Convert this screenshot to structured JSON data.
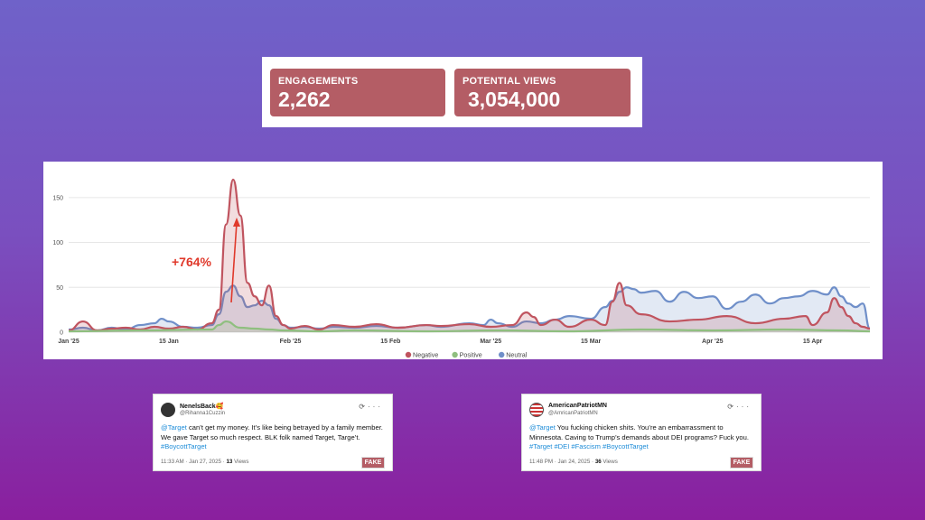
{
  "stats": {
    "engagements": {
      "label": "ENGAGEMENTS",
      "value": "2,262"
    },
    "potential_views": {
      "label": "POTENTIAL VIEWS",
      "value": "3,054,000"
    }
  },
  "colors": {
    "card": "#b45d65",
    "negative": "#c0545f",
    "positive": "#8fbf7f",
    "neutral": "#6f8fc9",
    "annotation": "#e0392b"
  },
  "chart_data": {
    "type": "area",
    "title": "",
    "xlabel": "",
    "ylabel": "",
    "ylim": [
      0,
      180
    ],
    "y_ticks": [
      "0",
      "50",
      "100",
      "150"
    ],
    "x_ticks": [
      "Jan '25",
      "15 Jan",
      "Feb '25",
      "15 Feb",
      "Mar '25",
      "15 Mar",
      "Apr '25",
      "15 Apr"
    ],
    "x_tick_days": [
      0,
      14,
      31,
      45,
      59,
      73,
      90,
      104
    ],
    "annotation": "+764%",
    "series": [
      {
        "name": "Negative",
        "days": [
          0,
          2,
          4,
          6,
          8,
          10,
          12,
          14,
          16,
          18,
          20,
          21,
          22,
          23,
          24,
          25,
          26,
          27,
          28,
          29,
          30,
          31,
          33,
          35,
          37,
          40,
          43,
          46,
          50,
          52,
          56,
          59,
          62,
          64,
          65,
          66,
          68,
          70,
          73,
          75,
          76,
          77,
          78,
          80,
          84,
          88,
          92,
          96,
          100,
          103,
          104,
          106,
          107,
          108,
          109,
          110,
          111,
          112
        ],
        "values": [
          2,
          12,
          2,
          4,
          5,
          3,
          6,
          4,
          6,
          3,
          10,
          25,
          120,
          170,
          130,
          55,
          40,
          30,
          52,
          18,
          8,
          4,
          7,
          3,
          8,
          6,
          9,
          5,
          8,
          7,
          9,
          6,
          8,
          22,
          17,
          8,
          14,
          6,
          14,
          8,
          34,
          55,
          30,
          20,
          12,
          14,
          18,
          10,
          15,
          18,
          8,
          22,
          38,
          28,
          18,
          10,
          6,
          4
        ]
      },
      {
        "name": "Positive",
        "days": [
          0,
          10,
          20,
          21,
          22,
          24,
          26,
          28,
          30,
          35,
          40,
          50,
          60,
          70,
          80,
          90,
          100,
          108,
          112
        ],
        "values": [
          1,
          2,
          3,
          8,
          12,
          5,
          4,
          3,
          2,
          1,
          2,
          1,
          2,
          1,
          3,
          2,
          3,
          2,
          1
        ]
      },
      {
        "name": "Neutral",
        "days": [
          0,
          2,
          4,
          6,
          8,
          10,
          12,
          13,
          14,
          16,
          18,
          20,
          21,
          22,
          23,
          24,
          25,
          26,
          27,
          28,
          29,
          30,
          31,
          33,
          35,
          37,
          40,
          43,
          46,
          50,
          52,
          56,
          58,
          59,
          60,
          62,
          64,
          66,
          68,
          70,
          73,
          75,
          76,
          77,
          78,
          79,
          80,
          82,
          84,
          86,
          88,
          90,
          92,
          94,
          96,
          98,
          100,
          102,
          104,
          106,
          107,
          108,
          109,
          110,
          111,
          112
        ],
        "values": [
          3,
          5,
          2,
          5,
          3,
          8,
          10,
          15,
          12,
          6,
          5,
          8,
          20,
          45,
          52,
          40,
          28,
          30,
          35,
          30,
          15,
          8,
          5,
          6,
          4,
          6,
          5,
          7,
          5,
          8,
          6,
          10,
          8,
          14,
          10,
          6,
          12,
          10,
          14,
          18,
          15,
          28,
          35,
          45,
          50,
          48,
          44,
          46,
          34,
          45,
          38,
          40,
          26,
          34,
          42,
          32,
          38,
          40,
          46,
          42,
          50,
          40,
          32,
          28,
          32,
          4
        ]
      }
    ]
  },
  "tweets": [
    {
      "name": "NenelsBack🥰",
      "handle": "@Rihanna1Cuzzin",
      "mention": "@Target",
      "body": " can’t get my money. It’s like being betrayed by a family member. We gave Target so much respect. BLK folk named Target, Targe’t.",
      "hashtags": "#BoycottTarget",
      "time": "11:33 AM · Jan 27, 2025 · ",
      "views": "13",
      "views_label": " Views",
      "badge": "FAKE"
    },
    {
      "name": "AmericanPatriotMN",
      "handle": "@AmricanPatriotMN",
      "mention": "@Target",
      "body": " You fucking chicken shits. You’re an embarrassment to Minnesota. Caving to Trump’s demands about DEI programs? Fuck you.",
      "hashtags": "#Target #DEI #Fascism #BoycottTarget",
      "time": "11:48 PM · Jan 24, 2025 · ",
      "views": "36",
      "views_label": " Views",
      "badge": "FAKE"
    }
  ]
}
